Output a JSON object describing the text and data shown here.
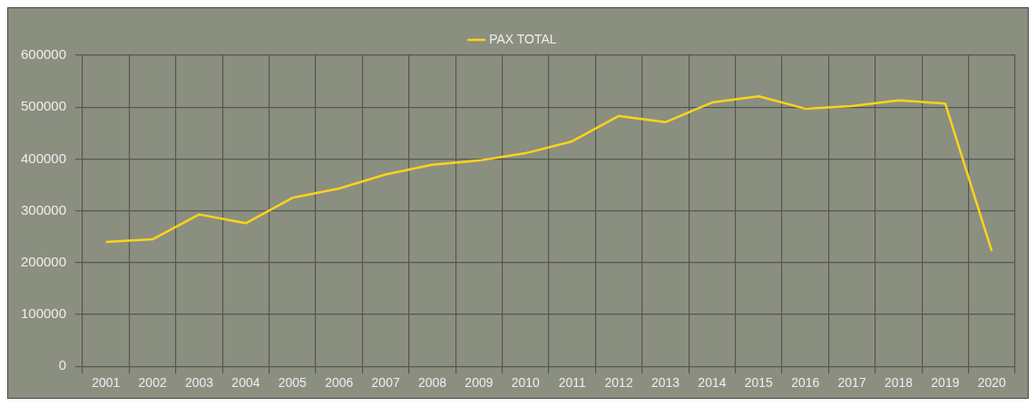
{
  "chart_data": {
    "type": "line",
    "categories": [
      "2001",
      "2002",
      "2003",
      "2004",
      "2005",
      "2006",
      "2007",
      "2008",
      "2009",
      "2010",
      "2011",
      "2012",
      "2013",
      "2014",
      "2015",
      "2016",
      "2017",
      "2018",
      "2019",
      "2020"
    ],
    "series": [
      {
        "name": "PAX TOTAL",
        "color": "#ffd21a",
        "values": [
          240000,
          245000,
          293000,
          276000,
          325000,
          343000,
          370000,
          389000,
          397000,
          411000,
          434000,
          483000,
          471000,
          509000,
          521000,
          497000,
          502000,
          513000,
          507000,
          222000
        ]
      }
    ],
    "ylim": [
      0,
      600000
    ],
    "yticks": [
      0,
      100000,
      200000,
      300000,
      400000,
      500000,
      600000
    ],
    "grid": true,
    "legend": "top",
    "marker": "none",
    "line_style": "solid"
  }
}
